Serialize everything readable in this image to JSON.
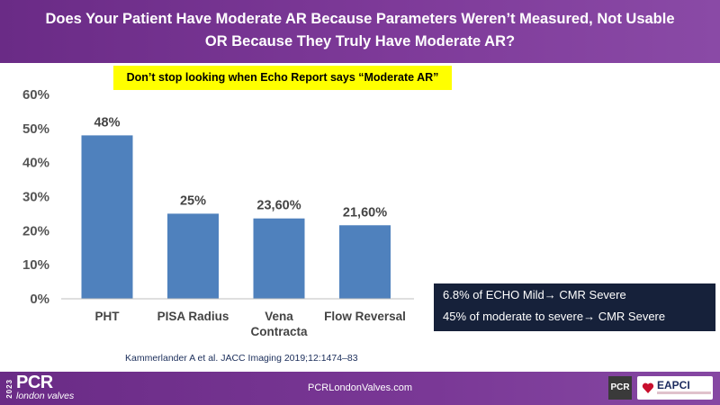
{
  "header": {
    "title_line1": "Does Your Patient Have Moderate AR Because Parameters Weren’t Measured, Not Usable",
    "title_line2": "OR Because They Truly Have Moderate AR?"
  },
  "callout": "Don’t stop looking when Echo Report says “Moderate AR”",
  "chart_data": {
    "type": "bar",
    "categories": [
      "PHT",
      "PISA Radius",
      "Vena Contracta",
      "Flow Reversal"
    ],
    "category_lines": [
      [
        "PHT"
      ],
      [
        "PISA Radius"
      ],
      [
        "Vena",
        "Contracta"
      ],
      [
        "Flow Reversal"
      ]
    ],
    "values": [
      48,
      25,
      23.6,
      21.6
    ],
    "data_labels": [
      "48%",
      "25%",
      "23,60%",
      "21,60%"
    ],
    "ylim": [
      0,
      60
    ],
    "yticks": [
      0,
      10,
      20,
      30,
      40,
      50,
      60
    ],
    "ytick_labels": [
      "0%",
      "10%",
      "20%",
      "30%",
      "40%",
      "50%",
      "60%"
    ],
    "bar_color": "#4f81bd",
    "title": "",
    "xlabel": "",
    "ylabel": "",
    "grid": false
  },
  "infobox": {
    "line1": "6.8% of ECHO Mild→ CMR Severe",
    "line2": "45% of moderate to severe→ CMR Severe"
  },
  "reference": "Kammerlander A et al. JACC Imaging 2019;12:1474–83",
  "footer": {
    "year": "2023",
    "logo": "PCR",
    "logo_sub": "london valves",
    "url": "PCRLondonValves.com",
    "pcr_badge": "PCR",
    "eapci": "EAPCI"
  },
  "colors": {
    "header": "#6a2b86",
    "callout_bg": "#ffff00",
    "bar": "#4f81bd",
    "infobox_bg": "#16213a"
  }
}
